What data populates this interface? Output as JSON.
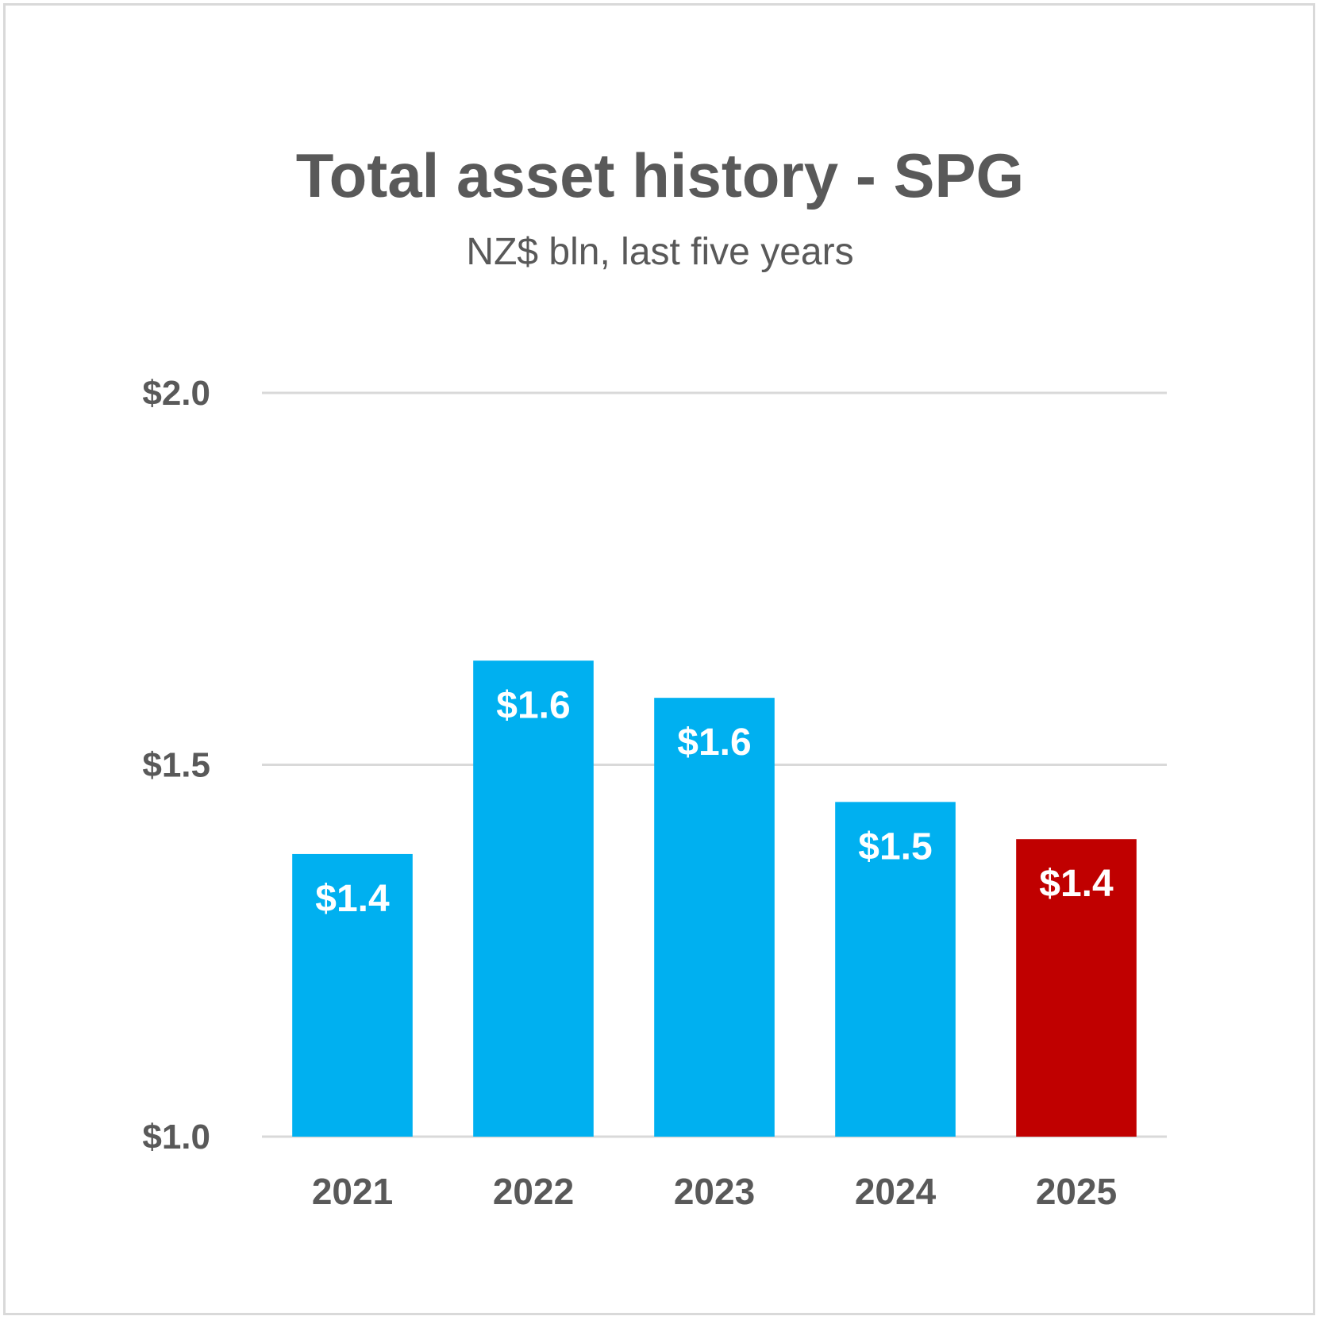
{
  "chart_data": {
    "type": "bar",
    "title": "Total asset history - SPG",
    "subtitle": "NZ$ bln, last five years",
    "categories": [
      "2021",
      "2022",
      "2023",
      "2024",
      "2025"
    ],
    "values": [
      1.38,
      1.64,
      1.59,
      1.45,
      1.4
    ],
    "data_labels": [
      "$1.4",
      "$1.6",
      "$1.6",
      "$1.5",
      "$1.4"
    ],
    "ylim": [
      1.0,
      2.0
    ],
    "yticks": [
      1.0,
      1.5,
      2.0
    ],
    "ytick_labels": [
      "$1.0",
      "$1.5",
      "$2.0"
    ],
    "grid": true,
    "legend": "none",
    "colors": {
      "default_bar": "#00b0f0",
      "highlight_bar": "#c00000",
      "gridline": "#d9d9d9",
      "text": "#595959"
    },
    "highlight_index": 4
  }
}
